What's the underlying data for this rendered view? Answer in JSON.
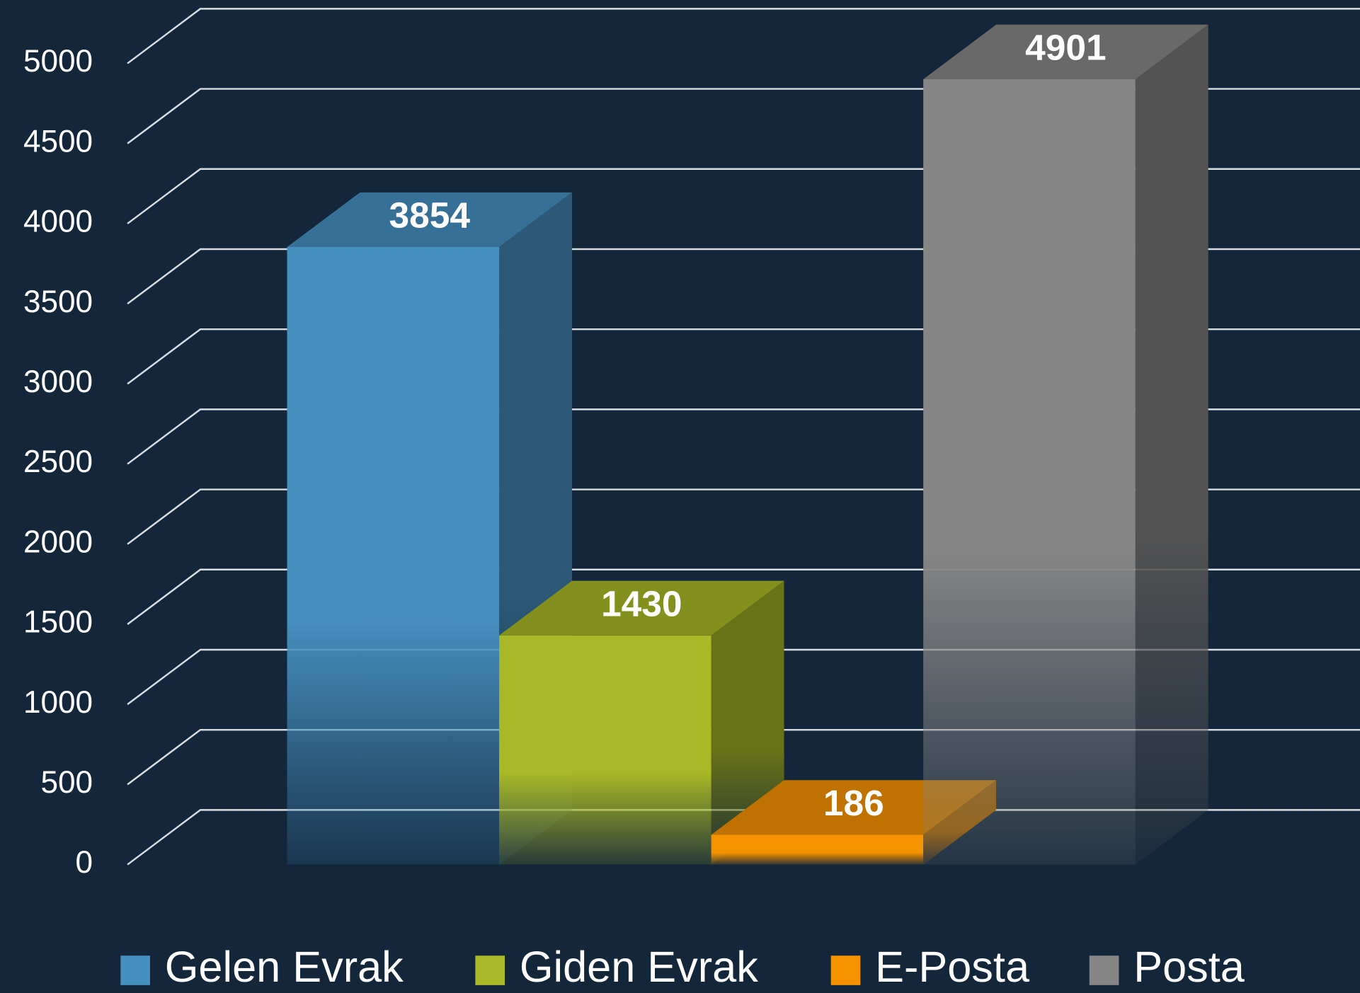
{
  "chart_data": {
    "type": "bar",
    "series": [
      {
        "name": "Gelen Evrak",
        "color": "#4690c0",
        "values": [
          3854
        ]
      },
      {
        "name": "Giden Evrak",
        "color": "#a8b826",
        "values": [
          1430
        ]
      },
      {
        "name": "E-Posta",
        "color": "#f59200",
        "values": [
          186
        ]
      },
      {
        "name": "Posta",
        "color": "#868686",
        "values": [
          4901
        ]
      }
    ],
    "ylim": [
      0,
      5000
    ],
    "yticks": [
      0,
      500,
      1000,
      1500,
      2000,
      2500,
      3000,
      3500,
      4000,
      4500,
      5000
    ],
    "grid": true,
    "legend": "bottom"
  }
}
